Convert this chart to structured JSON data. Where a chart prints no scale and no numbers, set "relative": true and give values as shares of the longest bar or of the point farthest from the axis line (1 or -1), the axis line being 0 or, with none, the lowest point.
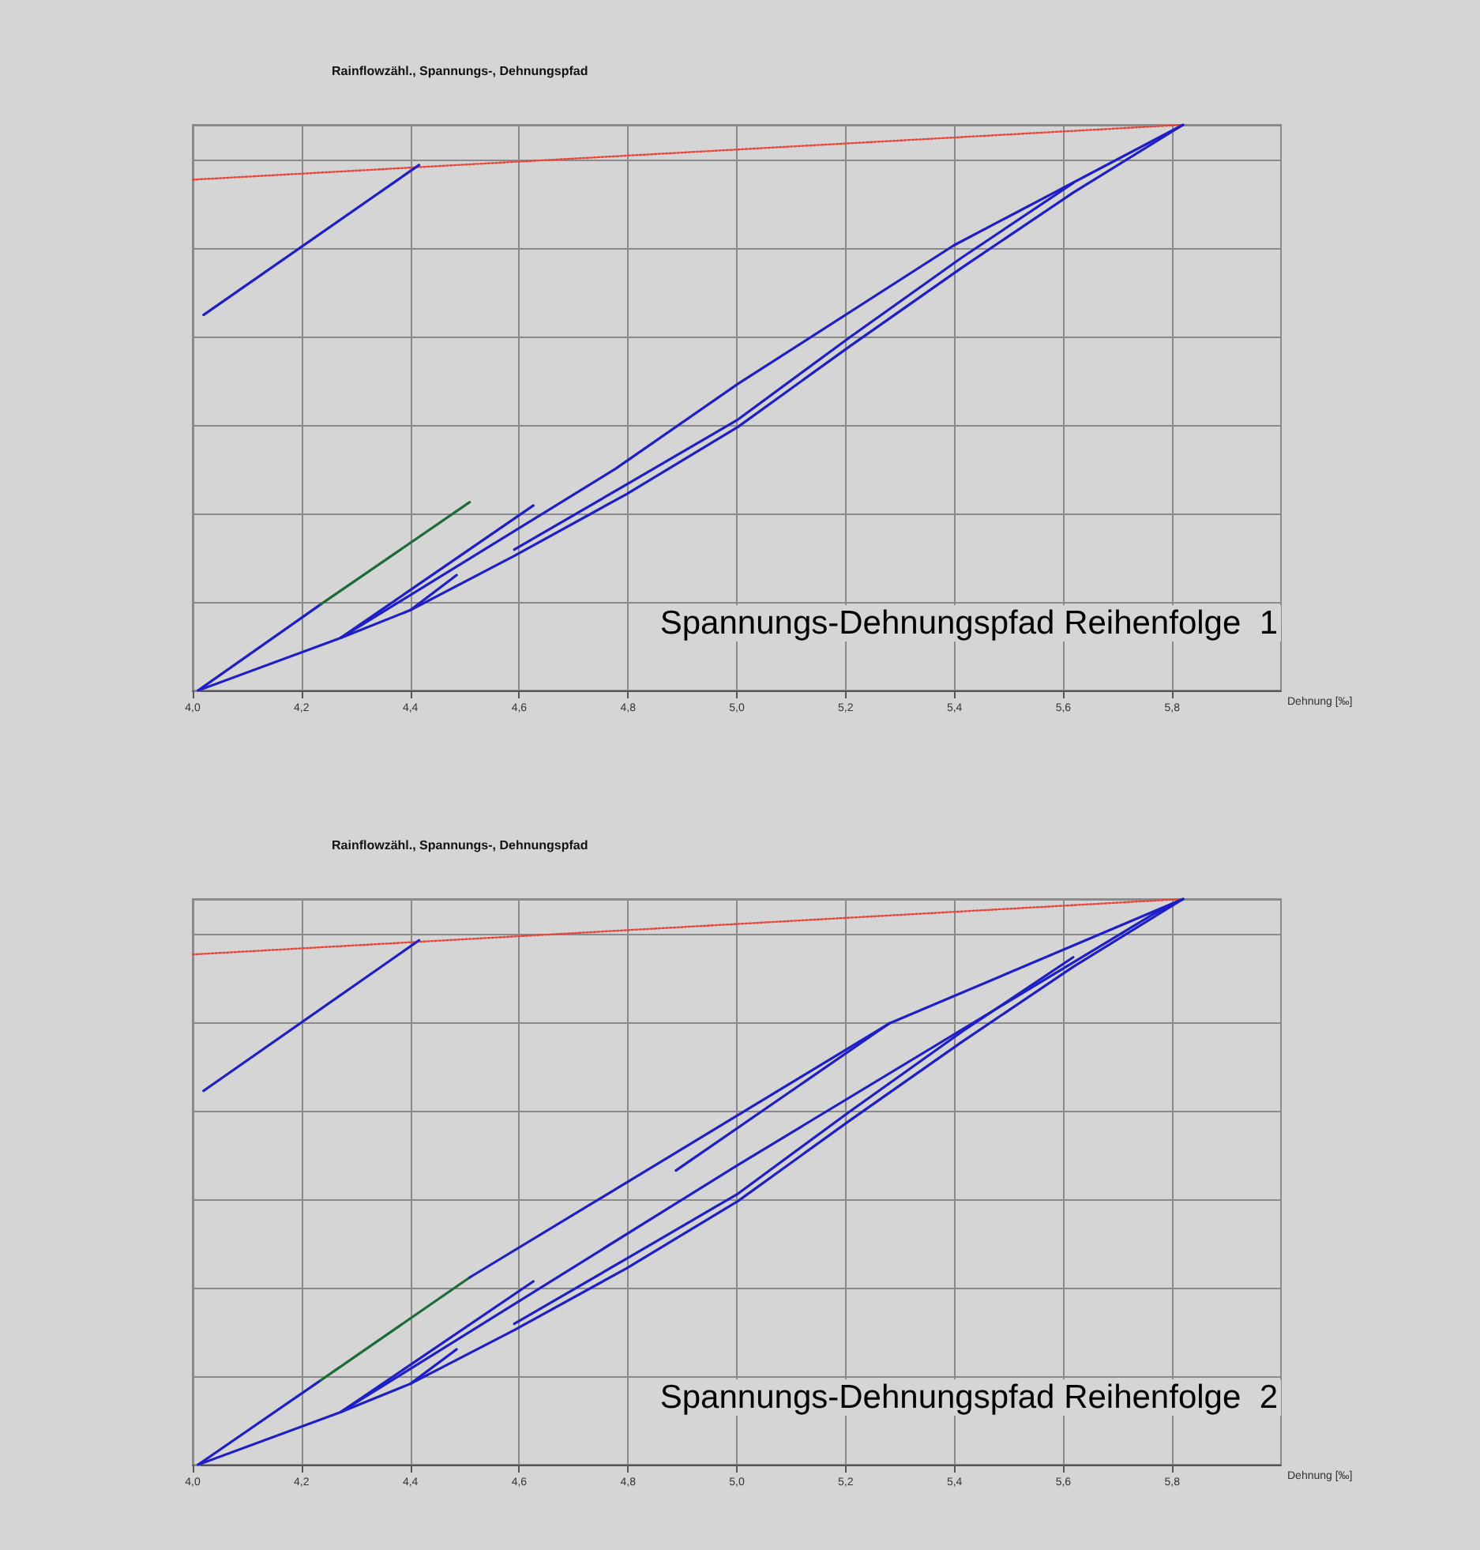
{
  "chart_data": [
    {
      "type": "line",
      "title": "Rainflowzähl., Spannungs-, Dehnungspfad",
      "xlabel": "Dehnung [‰]",
      "annotations": [
        "Spannungs-Dehnungspfad Reihenfolge  1"
      ],
      "relative": true,
      "grid": true,
      "tick_labels": "x",
      "marker": "none",
      "line_style": "solid",
      "xlim": [
        4.0,
        6.0
      ],
      "xticks": [
        {
          "value": 4.0,
          "label": "4,0"
        },
        {
          "value": 4.2,
          "label": "4,2"
        },
        {
          "value": 4.4,
          "label": "4,4"
        },
        {
          "value": 4.6,
          "label": "4,6"
        },
        {
          "value": 4.8,
          "label": "4,8"
        },
        {
          "value": 5.0,
          "label": "5,0"
        },
        {
          "value": 5.2,
          "label": "5,2"
        },
        {
          "value": 5.4,
          "label": "5,4"
        },
        {
          "value": 5.6,
          "label": "5,6"
        },
        {
          "value": 5.8,
          "label": "5,8"
        }
      ],
      "series": [
        {
          "color": "#e8443a",
          "line_style": "dotted",
          "x": [
            4.0,
            5.82
          ],
          "values": [
            0.903,
            1.0
          ]
        },
        {
          "color": "#1f1fc8",
          "x": [
            4.02,
            4.416
          ],
          "values": [
            0.664,
            0.929
          ]
        },
        {
          "color": "#1f1fc8",
          "x": [
            4.01,
            4.235
          ],
          "values": [
            0,
            0.152
          ]
        },
        {
          "color": "#1e6b3a",
          "x": [
            4.235,
            4.509
          ],
          "values": [
            0.152,
            0.333
          ]
        },
        {
          "color": "#1f1fc8",
          "x": [
            4.272,
            4.626
          ],
          "values": [
            0.093,
            0.327
          ]
        },
        {
          "color": "#1f1fc8",
          "x": [
            4.272,
            4.777,
            5.002,
            5.399,
            5.82
          ],
          "values": [
            0.093,
            0.392,
            0.542,
            0.787,
            1.0
          ]
        },
        {
          "color": "#1f1fc8",
          "x": [
            4.4,
            4.485
          ],
          "values": [
            0.142,
            0.204
          ]
        },
        {
          "color": "#1f1fc8",
          "x": [
            4.01,
            4.272,
            4.4,
            4.591,
            4.797,
            5.002,
            5.207,
            5.413,
            5.618,
            5.82
          ],
          "values": [
            0,
            0.093,
            0.142,
            0.238,
            0.347,
            0.466,
            0.608,
            0.747,
            0.88,
            1.0
          ]
        },
        {
          "color": "#1f1fc8",
          "x": [
            4.591,
            4.797,
            5.002,
            5.207,
            5.413,
            5.618
          ],
          "values": [
            0.249,
            0.364,
            0.479,
            0.624,
            0.765,
            0.897
          ]
        }
      ]
    },
    {
      "type": "line",
      "title": "Rainflowzähl., Spannungs-, Dehnungspfad",
      "xlabel": "Dehnung [‰]",
      "annotations": [
        "Spannungs-Dehnungspfad Reihenfolge  2"
      ],
      "relative": true,
      "grid": true,
      "tick_labels": "x",
      "marker": "none",
      "line_style": "solid",
      "xlim": [
        4.0,
        6.0
      ],
      "xticks": [
        {
          "value": 4.0,
          "label": "4,0"
        },
        {
          "value": 4.2,
          "label": "4,2"
        },
        {
          "value": 4.4,
          "label": "4,4"
        },
        {
          "value": 4.6,
          "label": "4,6"
        },
        {
          "value": 4.8,
          "label": "4,8"
        },
        {
          "value": 5.0,
          "label": "5,0"
        },
        {
          "value": 5.2,
          "label": "5,2"
        },
        {
          "value": 5.4,
          "label": "5,4"
        },
        {
          "value": 5.6,
          "label": "5,6"
        },
        {
          "value": 5.8,
          "label": "5,8"
        }
      ],
      "series": [
        {
          "color": "#e8443a",
          "line_style": "dotted",
          "x": [
            4.0,
            5.82
          ],
          "values": [
            0.902,
            1.0
          ]
        },
        {
          "color": "#1f1fc8",
          "x": [
            4.02,
            4.416
          ],
          "values": [
            0.661,
            0.927
          ]
        },
        {
          "color": "#1f1fc8",
          "x": [
            4.01,
            4.235
          ],
          "values": [
            0,
            0.149
          ]
        },
        {
          "color": "#1e6b3a",
          "x": [
            4.235,
            4.509
          ],
          "values": [
            0.149,
            0.331
          ]
        },
        {
          "color": "#1f1fc8",
          "x": [
            4.509,
            5.28,
            5.82
          ],
          "values": [
            0.331,
            0.78,
            1.0
          ]
        },
        {
          "color": "#1f1fc8",
          "x": [
            4.888,
            5.28
          ],
          "values": [
            0.52,
            0.78
          ]
        },
        {
          "color": "#1f1fc8",
          "x": [
            4.272,
            4.626
          ],
          "values": [
            0.093,
            0.324
          ]
        },
        {
          "color": "#1f1fc8",
          "x": [
            4.272,
            5.002,
            5.763,
            5.82
          ],
          "values": [
            0.093,
            0.53,
            0.972,
            1.0
          ]
        },
        {
          "color": "#1f1fc8",
          "x": [
            4.4,
            4.485
          ],
          "values": [
            0.143,
            0.204
          ]
        },
        {
          "color": "#1f1fc8",
          "x": [
            4.01,
            4.272,
            4.4,
            4.591,
            4.797,
            5.002,
            5.207,
            5.413,
            5.618,
            5.82
          ],
          "values": [
            0,
            0.093,
            0.143,
            0.238,
            0.347,
            0.466,
            0.608,
            0.747,
            0.88,
            1.0
          ]
        },
        {
          "color": "#1f1fc8",
          "x": [
            4.591,
            4.797,
            5.002,
            5.207,
            5.413,
            5.618
          ],
          "values": [
            0.249,
            0.364,
            0.479,
            0.624,
            0.765,
            0.897
          ]
        }
      ]
    }
  ]
}
